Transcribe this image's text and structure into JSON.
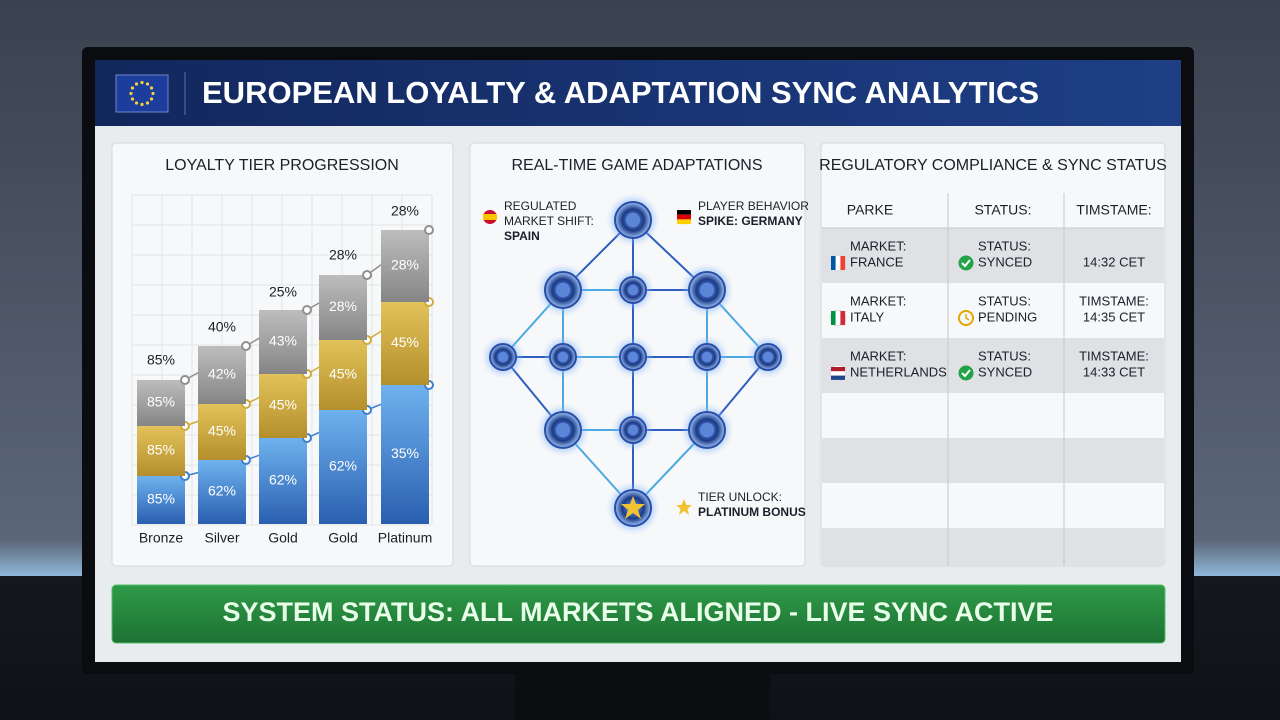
{
  "header": {
    "title": "EUROPEAN LOYALTY & ADAPTATION SYNC ANALYTICS"
  },
  "tiers": {
    "title": "LOYALTY TIER PROGRESSION",
    "bars": [
      {
        "label": "Bronze",
        "top": "85%",
        "segments": [
          "85%",
          "85%",
          "85%"
        ]
      },
      {
        "label": "Silver",
        "top": "40%",
        "segments": [
          "62%",
          "45%",
          "42%"
        ]
      },
      {
        "label": "Gold",
        "top": "25%",
        "segments": [
          "62%",
          "45%",
          "43%"
        ]
      },
      {
        "label": "Gold",
        "top": "28%",
        "segments": [
          "62%",
          "45%",
          "28%"
        ]
      },
      {
        "label": "Platinum",
        "top": "28%",
        "segments": [
          "35%",
          "45%",
          "28%"
        ]
      }
    ]
  },
  "adaptations": {
    "title": "REAL-TIME GAME ADAPTATIONS",
    "callouts": [
      {
        "lines": [
          "REGULATED",
          "MARKET SHIFT:",
          "SPAIN"
        ]
      },
      {
        "lines": [
          "PLAYER BEHAVIOR",
          "SPIKE: GERMANY"
        ]
      },
      {
        "lines": [
          "TIER UNLOCK:",
          "PLATINUM BONUS"
        ]
      }
    ]
  },
  "compliance": {
    "title": "REGULATORY COMPLIANCE & SYNC STATUS",
    "columns": [
      "PARKE",
      "STATUS:",
      "TIMSTAME:"
    ],
    "rows": [
      {
        "market": [
          "MARKET:",
          "FRANCE"
        ],
        "status": [
          "STATUS:",
          "SYNCED"
        ],
        "time": [
          "14:32 CET"
        ]
      },
      {
        "market": [
          "MARKET:",
          "ITALY"
        ],
        "status": [
          "STATUS:",
          "PENDING"
        ],
        "time": [
          "TIMSTAME:",
          "14:35 CET"
        ]
      },
      {
        "market": [
          "MARKET:",
          "NETHERLANDS"
        ],
        "status": [
          "STATUS:",
          "SYNCED"
        ],
        "time": [
          "TIMSTAME:",
          "14:33 CET"
        ]
      }
    ]
  },
  "status_bar": {
    "text": "SYSTEM STATUS: ALL MARKETS ALIGNED - LIVE SYNC ACTIVE"
  }
}
